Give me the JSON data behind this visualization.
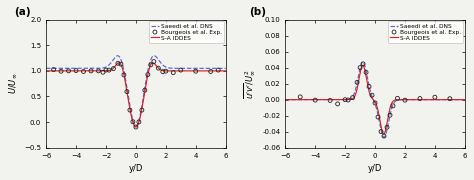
{
  "panel_a": {
    "label": "(a)",
    "xlabel": "y/D",
    "ylabel": "U/U$_\\infty$",
    "xlim": [
      -6,
      6
    ],
    "ylim": [
      -0.5,
      2.0
    ],
    "yticks": [
      -0.5,
      0.0,
      0.5,
      1.0,
      1.5,
      2.0
    ],
    "xticks": [
      -6,
      -4,
      -2,
      0,
      2,
      4,
      6
    ],
    "dns_color": "#5566dd",
    "exp_color": "#222222",
    "iddes_color": "#dd2222",
    "legend_entries": [
      "Saeedi et al. DNS",
      "Bourgeois et al. Exp.",
      "S-A IDDES"
    ]
  },
  "panel_b": {
    "label": "(b)",
    "xlabel": "y/D",
    "xlim": [
      -6,
      6
    ],
    "ylim": [
      -0.06,
      0.1
    ],
    "yticks": [
      -0.06,
      -0.04,
      -0.02,
      0.0,
      0.02,
      0.04,
      0.06,
      0.08,
      0.1
    ],
    "xticks": [
      -6,
      -4,
      -2,
      0,
      2,
      4,
      6
    ],
    "dns_color": "#5566dd",
    "exp_color": "#222222",
    "iddes_color": "#dd2222",
    "legend_entries": [
      "Saeedi et al. DNS",
      "Bourgeois et al. Exp.",
      "S-A IDDES"
    ]
  },
  "background_color": "#f2f2ee"
}
